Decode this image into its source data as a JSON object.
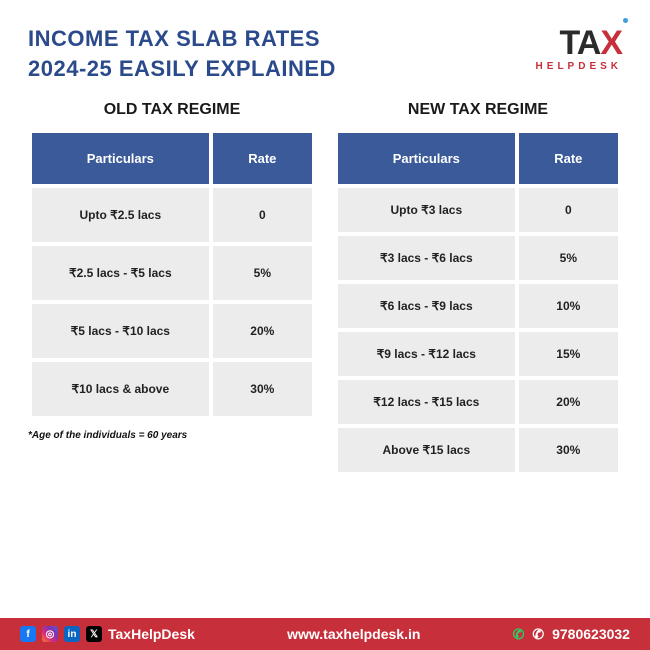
{
  "title_line1": "INCOME TAX SLAB RATES",
  "title_line2": "2024-25 EASILY EXPLAINED",
  "logo": {
    "main": "TA",
    "x": "X",
    "sub": "HELPDESK"
  },
  "colors": {
    "title": "#2b4a8b",
    "th_bg": "#3a5a99",
    "th_text": "#ffffff",
    "td_bg": "#ececec",
    "td_text": "#222222",
    "accent_red": "#c72f3a",
    "footer_text": "#ffffff"
  },
  "regimes": {
    "old": {
      "title": "OLD TAX REGIME",
      "headers": {
        "particulars": "Particulars",
        "rate": "Rate"
      },
      "rows": [
        {
          "p": "Upto ₹2.5 lacs",
          "r": "0"
        },
        {
          "p": "₹2.5 lacs - ₹5 lacs",
          "r": "5%"
        },
        {
          "p": "₹5 lacs - ₹10 lacs",
          "r": "20%"
        },
        {
          "p": "₹10 lacs & above",
          "r": "30%"
        }
      ],
      "footnote": "*Age of the individuals = 60 years"
    },
    "new": {
      "title": "NEW TAX REGIME",
      "headers": {
        "particulars": "Particulars",
        "rate": "Rate"
      },
      "rows": [
        {
          "p": "Upto ₹3 lacs",
          "r": "0"
        },
        {
          "p": "₹3 lacs - ₹6 lacs",
          "r": "5%"
        },
        {
          "p": "₹6 lacs - ₹9 lacs",
          "r": "10%"
        },
        {
          "p": "₹9 lacs - ₹12 lacs",
          "r": "15%"
        },
        {
          "p": "₹12 lacs - ₹15 lacs",
          "r": "20%"
        },
        {
          "p": "Above ₹15 lacs",
          "r": "30%"
        }
      ]
    }
  },
  "footer": {
    "handle": "TaxHelpDesk",
    "website": "www.taxhelpdesk.in",
    "phone": "9780623032",
    "social": {
      "fb": "f",
      "ig": "◎",
      "li": "in",
      "x": "𝕏"
    },
    "whatsapp_icon": "✆",
    "phone_icon": "✆"
  }
}
